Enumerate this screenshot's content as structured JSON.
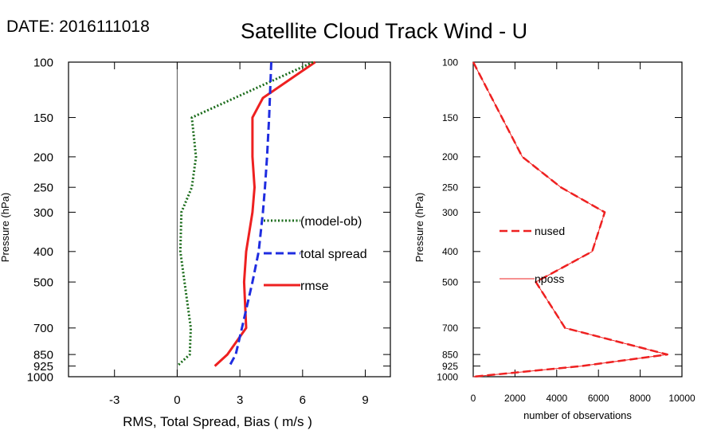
{
  "header": {
    "date_label": "DATE: 2016111018",
    "title": "Satellite Cloud Track Wind - U"
  },
  "colors": {
    "bias": "#1a6b1a",
    "spread": "#1f2de0",
    "rmse": "#ee2020",
    "obs": "#ee2020"
  },
  "chart_data": [
    {
      "type": "line",
      "xlabel": "RMS, Total Spread, Bias ( m/s )",
      "ylabel": "Pressure (hPa)",
      "xlim": [
        -5.2,
        10.2
      ],
      "x_ticks": [
        -3,
        0,
        3,
        6,
        9
      ],
      "y_scale": "log",
      "ylim": [
        1000,
        100
      ],
      "y_ticks": [
        100,
        150,
        200,
        250,
        300,
        400,
        500,
        700,
        850,
        925,
        1000
      ],
      "zero_line": 0,
      "series": [
        {
          "name": "(model-ob)",
          "style": "dotted",
          "color_key": "bias",
          "pressure": [
            100,
            150,
            200,
            250,
            300,
            400,
            500,
            700,
            850,
            925
          ],
          "values": [
            6.5,
            0.7,
            0.9,
            0.7,
            0.2,
            0.15,
            0.35,
            0.65,
            0.6,
            0.0
          ]
        },
        {
          "name": "total spread",
          "style": "dashed",
          "color_key": "spread",
          "pressure": [
            100,
            150,
            200,
            250,
            300,
            400,
            500,
            700,
            850,
            925
          ],
          "values": [
            4.5,
            4.4,
            4.3,
            4.2,
            4.1,
            3.9,
            3.6,
            3.1,
            2.8,
            2.5
          ]
        },
        {
          "name": "rmse",
          "style": "solid",
          "color_key": "rmse",
          "pressure": [
            100,
            130,
            150,
            200,
            250,
            300,
            400,
            500,
            700,
            850,
            925
          ],
          "values": [
            6.6,
            4.1,
            3.6,
            3.6,
            3.7,
            3.6,
            3.3,
            3.2,
            3.3,
            2.4,
            1.8
          ]
        }
      ],
      "legend": {
        "placement": "right-middle",
        "entries": [
          "(model-ob)",
          "total spread",
          "rmse"
        ]
      }
    },
    {
      "type": "line",
      "xlabel": "number of observations",
      "ylabel": "Pressure (hPa)",
      "xlim": [
        0,
        10000
      ],
      "x_ticks": [
        0,
        2000,
        4000,
        6000,
        8000,
        10000
      ],
      "y_scale": "log",
      "ylim": [
        1000,
        100
      ],
      "y_ticks": [
        100,
        150,
        200,
        250,
        300,
        400,
        500,
        700,
        850,
        925,
        1000
      ],
      "series": [
        {
          "name": "nused",
          "style": "dashed",
          "color_key": "obs",
          "pressure": [
            100,
            200,
            250,
            300,
            400,
            500,
            700,
            850,
            925,
            1000
          ],
          "values": [
            0,
            2350,
            4200,
            6300,
            5700,
            3000,
            4400,
            9300,
            5200,
            0
          ]
        },
        {
          "name": "nposs",
          "style": "solid",
          "color_key": "obs",
          "pressure": [
            100,
            200,
            250,
            300,
            400,
            500,
            700,
            850,
            925,
            1000
          ],
          "values": [
            0,
            2350,
            4200,
            6300,
            5700,
            3000,
            4400,
            9300,
            5200,
            0
          ]
        }
      ],
      "legend": {
        "placement": "left-middle",
        "entries": [
          "nused",
          "nposs"
        ]
      }
    }
  ]
}
